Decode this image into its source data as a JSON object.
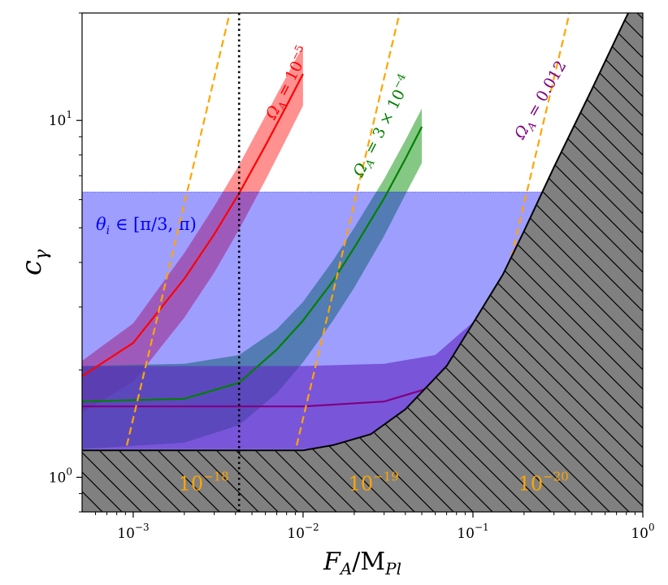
{
  "chart_data": {
    "type": "line",
    "xlabel": "F_A/M_Pl",
    "ylabel": "c_γ",
    "xscale": "log",
    "yscale": "log",
    "xlim": [
      0.0005,
      1.0
    ],
    "ylim": [
      0.8,
      20
    ],
    "grid": false,
    "x_ticks": [
      {
        "value": 0.001,
        "base": "10",
        "exp": "−3"
      },
      {
        "value": 0.01,
        "base": "10",
        "exp": "−2"
      },
      {
        "value": 0.1,
        "base": "10",
        "exp": "−1"
      },
      {
        "value": 1.0,
        "base": "10",
        "exp": "0"
      }
    ],
    "y_ticks": [
      {
        "value": 1.0,
        "base": "10",
        "exp": "0"
      },
      {
        "value": 10.0,
        "base": "10",
        "exp": "1"
      }
    ],
    "series": [
      {
        "name": "Ω_A = 10^−5",
        "label_prefix": "Ω",
        "label_sub": "A",
        "label_eq": " = 10",
        "label_sup": "−5",
        "color": "#ff0000",
        "band_color": "#ff4d4d",
        "x": [
          0.0005,
          0.001,
          0.002,
          0.003,
          0.0042,
          0.006,
          0.008,
          0.01
        ],
        "y": [
          1.92,
          2.38,
          3.6,
          4.8,
          6.25,
          8.5,
          11.0,
          13.5
        ],
        "band_lower": [
          1.52,
          1.85,
          2.8,
          3.75,
          4.95,
          6.8,
          8.9,
          11.0
        ],
        "band_upper": [
          2.12,
          2.7,
          4.25,
          5.75,
          7.5,
          10.3,
          13.3,
          16.2
        ]
      },
      {
        "name": "Ω_A = 3 × 10^−4",
        "label_prefix": "Ω",
        "label_sub": "A",
        "label_eq": " = 3 × 10",
        "label_sup": "−4",
        "color": "#008000",
        "band_color": "#3aa63a",
        "x": [
          0.0005,
          0.002,
          0.0042,
          0.007,
          0.01,
          0.015,
          0.02,
          0.03,
          0.04,
          0.05
        ],
        "y": [
          1.63,
          1.66,
          1.84,
          2.28,
          2.75,
          3.55,
          4.4,
          6.05,
          7.8,
          9.6
        ],
        "band_lower": [
          1.2,
          1.25,
          1.4,
          1.72,
          2.1,
          2.75,
          3.4,
          4.75,
          6.2,
          7.6
        ],
        "band_upper": [
          2.05,
          2.08,
          2.2,
          2.6,
          3.1,
          4.05,
          5.0,
          6.85,
          8.8,
          10.8
        ]
      },
      {
        "name": "Ω_A = 0.012",
        "label_prefix": "Ω",
        "label_sub": "A",
        "label_eq": " = 0.012",
        "label_sup": "",
        "color": "#800080",
        "band_color": "#a040a0",
        "x": [
          0.0005,
          0.01,
          0.03,
          0.06,
          0.1,
          0.15,
          0.2,
          0.3,
          0.4,
          0.5
        ],
        "y": [
          1.58,
          1.58,
          1.63,
          1.8,
          2.3,
          3.1,
          3.95,
          5.6,
          7.3,
          9.0
        ],
        "band_lower": [
          1.2,
          1.2,
          1.22,
          1.36,
          1.75,
          2.45,
          3.15,
          4.5,
          5.9,
          7.2
        ],
        "band_upper": [
          2.05,
          2.05,
          2.08,
          2.2,
          2.72,
          3.6,
          4.55,
          6.4,
          8.4,
          10.4
        ]
      }
    ],
    "horizontal_band": {
      "label_var": "θ",
      "label_sub": "i",
      "label_rest": " ∈ [π/3, π)",
      "color": "#0000ff",
      "y_top": 6.3
    },
    "excluded_region": {
      "color": "#808080",
      "x": [
        0.0005,
        0.003,
        0.006,
        0.01,
        0.015,
        0.025,
        0.04,
        0.07,
        0.1,
        0.15,
        0.2,
        0.3,
        0.5,
        0.8,
        1.0
      ],
      "y": [
        1.19,
        1.19,
        1.19,
        1.19,
        1.23,
        1.32,
        1.55,
        2.05,
        2.7,
        3.7,
        4.9,
        7.4,
        12.2,
        19.5,
        24.0
      ]
    },
    "contours": [
      {
        "label_base": "10",
        "label_exp": "−18",
        "x0": 0.00074,
        "label_x": 0.0026,
        "label_y": 0.92
      },
      {
        "label_base": "10",
        "label_exp": "−19",
        "x0": 0.0074,
        "label_x": 0.026,
        "label_y": 0.92
      },
      {
        "label_base": "10",
        "label_exp": "−20",
        "x0": 0.074,
        "label_x": 0.26,
        "label_y": 0.92
      },
      {
        "label_base": "",
        "label_exp": "",
        "x0": 0.74,
        "label_x": 0,
        "label_y": 0
      }
    ],
    "contour_color": "#ffa500",
    "vertical_line": {
      "x": 0.0042,
      "color": "#000000"
    }
  }
}
